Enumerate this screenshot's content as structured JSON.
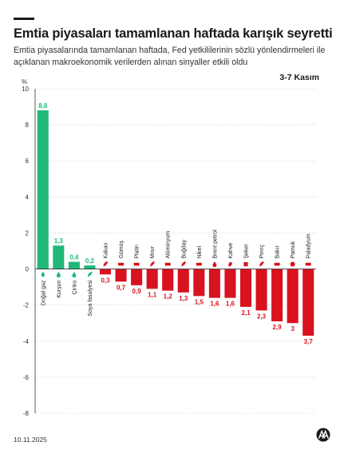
{
  "header": {
    "title": "Emtia piyasaları tamamlanan haftada karışık seyretti",
    "subtitle": "Emtia piyasalarında tamamlanan haftada, Fed yetkililerinin sözlü yönlendirmeleri ile açıklanan makroekonomik verilerden alınan sinyaller etkili oldu",
    "date_range": "3-7 Kasım"
  },
  "footer": {
    "date": "10.11.2025",
    "logo_icon": "aa-logo-icon"
  },
  "colors": {
    "positive": "#21b87a",
    "negative": "#d8121f",
    "grid": "#c8c8c8",
    "axis": "#333333"
  },
  "chart_data": {
    "type": "bar",
    "title": "",
    "xlabel": "",
    "ylabel": "%",
    "ylim": [
      -8,
      10
    ],
    "yticks": [
      10,
      8,
      6,
      4,
      2,
      0,
      -2,
      -4,
      -6,
      -8
    ],
    "grid": true,
    "categories": [
      "Doğal gaz",
      "Kurşun",
      "Çinko",
      "Soya fasulyesi",
      "Kakao",
      "Gümüş",
      "Platin",
      "Mısır",
      "Alüminyum",
      "Buğday",
      "Nikel",
      "Brent petrol",
      "Kahve",
      "Şeker",
      "Pirinç",
      "Bakır",
      "Pamuk",
      "Paladyum"
    ],
    "icons": [
      "flame-icon",
      "droplet-icon",
      "droplet-icon",
      "sprout-icon",
      "leaf-icon",
      "coin-icon",
      "coin-icon",
      "corn-icon",
      "coin-icon",
      "wheat-icon",
      "coin-icon",
      "oil-drop-icon",
      "coffee-icon",
      "cube-icon",
      "rice-icon",
      "coin-icon",
      "cotton-icon",
      "coin-icon"
    ],
    "values": [
      8.8,
      1.3,
      0.4,
      0.2,
      -0.3,
      -0.7,
      -0.9,
      -1.1,
      -1.2,
      -1.3,
      -1.5,
      -1.6,
      -1.6,
      -2.1,
      -2.3,
      -2.9,
      -3,
      -3.7
    ],
    "value_labels": [
      "8,8",
      "1,3",
      "0,4",
      "0,2",
      "0,3",
      "0,7",
      "0,9",
      "1,1",
      "1,2",
      "1,3",
      "1,5",
      "1,6",
      "1,6",
      "2,1",
      "2,3",
      "2,9",
      "3",
      "3,7"
    ]
  }
}
